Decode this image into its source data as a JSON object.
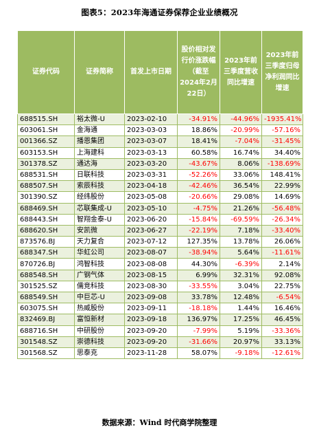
{
  "title": "图表5：2023年海通证券保荐企业业绩概况",
  "headers": {
    "code": "证券代码",
    "name": "证券简称",
    "date": "首发上市日期",
    "price_change": "股价相对发行价涨跌幅（截至2024年2月22日）",
    "revenue_growth": "2023年前三季度营收同比增速",
    "profit_growth": "2023年前三季度归母净利润同比增速"
  },
  "rows": [
    {
      "code": "688515.SH",
      "name": "裕太微-U",
      "date": "2023-02-10",
      "price_change": "-34.91%",
      "revenue_growth": "-44.96%",
      "profit_growth": "-1935.41%"
    },
    {
      "code": "603061.SH",
      "name": "金海通",
      "date": "2023-03-03",
      "price_change": "18.86%",
      "revenue_growth": "-20.99%",
      "profit_growth": "-57.16%"
    },
    {
      "code": "001366.SZ",
      "name": "播恩集团",
      "date": "2023-03-07",
      "price_change": "18.41%",
      "revenue_growth": "-7.04%",
      "profit_growth": "-31.45%"
    },
    {
      "code": "603153.SH",
      "name": "上海建科",
      "date": "2023-03-13",
      "price_change": "60.58%",
      "revenue_growth": "16.74%",
      "profit_growth": "34.40%"
    },
    {
      "code": "301378.SZ",
      "name": "通达海",
      "date": "2023-03-20",
      "price_change": "-43.67%",
      "revenue_growth": "8.06%",
      "profit_growth": "-138.69%"
    },
    {
      "code": "688531.SH",
      "name": "日联科技",
      "date": "2023-03-31",
      "price_change": "-52.26%",
      "revenue_growth": "33.06%",
      "profit_growth": "148.41%"
    },
    {
      "code": "688507.SH",
      "name": "索辰科技",
      "date": "2023-04-18",
      "price_change": "-42.46%",
      "revenue_growth": "36.54%",
      "profit_growth": "22.99%"
    },
    {
      "code": "301390.SZ",
      "name": "经纬股份",
      "date": "2023-05-08",
      "price_change": "-20.66%",
      "revenue_growth": "29.08%",
      "profit_growth": "14.69%"
    },
    {
      "code": "688469.SH",
      "name": "芯联集成-U",
      "date": "2023-05-10",
      "price_change": "-4.75%",
      "revenue_growth": "21.26%",
      "profit_growth": "-56.48%"
    },
    {
      "code": "688443.SH",
      "name": "智翔金泰-U",
      "date": "2023-06-20",
      "price_change": "-15.84%",
      "revenue_growth": "-69.59%",
      "profit_growth": "-26.34%"
    },
    {
      "code": "688620.SH",
      "name": "安凯微",
      "date": "2023-06-27",
      "price_change": "-22.19%",
      "revenue_growth": "7.18%",
      "profit_growth": "-33.40%"
    },
    {
      "code": "873576.BJ",
      "name": "天力复合",
      "date": "2023-07-12",
      "price_change": "127.35%",
      "revenue_growth": "13.78%",
      "profit_growth": "26.06%"
    },
    {
      "code": "688347.SH",
      "name": "华虹公司",
      "date": "2023-08-07",
      "price_change": "-38.94%",
      "revenue_growth": "5.64%",
      "profit_growth": "-11.61%"
    },
    {
      "code": "870726.BJ",
      "name": "鸿智科技",
      "date": "2023-08-08",
      "price_change": "44.30%",
      "revenue_growth": "-6.39%",
      "profit_growth": "2.14%"
    },
    {
      "code": "688548.SH",
      "name": "广钢气体",
      "date": "2023-08-15",
      "price_change": "6.99%",
      "revenue_growth": "32.31%",
      "profit_growth": "92.08%"
    },
    {
      "code": "301525.SZ",
      "name": "儒竞科技",
      "date": "2023-08-30",
      "price_change": "-33.55%",
      "revenue_growth": "3.04%",
      "profit_growth": "22.75%"
    },
    {
      "code": "688549.SH",
      "name": "中巨芯-U",
      "date": "2023-09-08",
      "price_change": "33.78%",
      "revenue_growth": "12.48%",
      "profit_growth": "-6.54%"
    },
    {
      "code": "603075.SH",
      "name": "热威股份",
      "date": "2023-09-11",
      "price_change": "-18.18%",
      "revenue_growth": "1.44%",
      "profit_growth": "16.46%"
    },
    {
      "code": "832469.BJ",
      "name": "富恒新材",
      "date": "2023-09-18",
      "price_change": "136.97%",
      "revenue_growth": "17.25%",
      "profit_growth": "46.45%"
    },
    {
      "code": "688716.SH",
      "name": "中研股份",
      "date": "2023-09-20",
      "price_change": "-7.99%",
      "revenue_growth": "5.19%",
      "profit_growth": "-33.36%"
    },
    {
      "code": "301548.SZ",
      "name": "崇德科技",
      "date": "2023-09-20",
      "price_change": "-31.66%",
      "revenue_growth": "20.97%",
      "profit_growth": "33.13%"
    },
    {
      "code": "301568.SZ",
      "name": "思泰克",
      "date": "2023-11-28",
      "price_change": "58.07%",
      "revenue_growth": "-9.18%",
      "profit_growth": "-12.61%"
    }
  ],
  "source": "数据来源：Wind 时代商学院整理",
  "colors": {
    "header_bg": "#9dbb61",
    "row_alt_bg": "#ebf1de",
    "negative": "#ff0000"
  }
}
